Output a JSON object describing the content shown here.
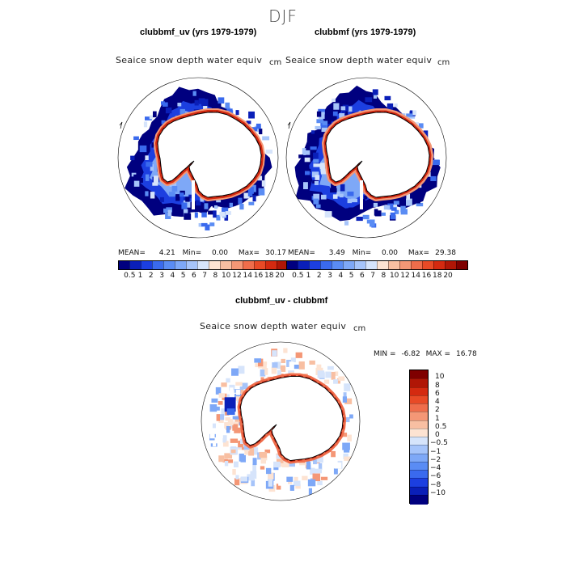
{
  "figure": {
    "season": "DJF"
  },
  "panels": [
    {
      "title": "clubbmf_uv (yrs 1979-1979)",
      "variable": "Seaice snow depth water equiv",
      "units": "cm",
      "mean_label": "MEAN=",
      "mean": "4.21",
      "min_label": "Min=",
      "min": "0.00",
      "max_label": "Max=",
      "max": "30.17"
    },
    {
      "title": "clubbmf (yrs 1979-1979)",
      "variable": "Seaice snow depth water equiv",
      "units": "cm",
      "mean_label": "MEAN=",
      "mean": "3.49",
      "min_label": "Min=",
      "min": "0.00",
      "max_label": "Max=",
      "max": "29.38"
    }
  ],
  "difference": {
    "title": "clubbmf_uv - clubbmf",
    "variable": "Seaice snow depth water equiv",
    "units": "cm",
    "min_label": "MIN =",
    "min": "-6.82",
    "max_label": "MAX =",
    "max": "16.78"
  },
  "colorbar_top": {
    "labels": [
      "0.5",
      "1",
      "2",
      "3",
      "4",
      "5",
      "6",
      "7",
      "8",
      "10",
      "12",
      "14",
      "16",
      "18",
      "20"
    ],
    "colors": [
      "#00007f",
      "#0a1fb8",
      "#1c3fe0",
      "#3a6aee",
      "#5a8cf4",
      "#7ea8f7",
      "#a6c4fa",
      "#d6e4fb",
      "#fde3d2",
      "#f8bfa2",
      "#f49776",
      "#ef6d4b",
      "#e84a26",
      "#d42a10",
      "#b01606",
      "#7f0000"
    ]
  },
  "colorbar_diff": {
    "labels": [
      "10",
      "8",
      "6",
      "4",
      "2",
      "1",
      "0.5",
      "0",
      "−0.5",
      "−1",
      "−2",
      "−4",
      "−6",
      "−8",
      "−10"
    ],
    "colors": [
      "#7f0000",
      "#b01606",
      "#d42a10",
      "#e84a26",
      "#ef6d4b",
      "#f49776",
      "#f8bfa2",
      "#fde3d2",
      "#d6e4fb",
      "#a6c4fa",
      "#7ea8f7",
      "#5a8cf4",
      "#3a6aee",
      "#1c3fe0",
      "#0a1fb8",
      "#00007f"
    ]
  },
  "chart_data": [
    {
      "type": "heatmap",
      "title": "clubbmf_uv (yrs 1979-1979)",
      "subtitle": "Seaice snow depth water equiv",
      "units": "cm",
      "projection": "south polar stereographic",
      "stats": {
        "mean": 4.21,
        "min": 0.0,
        "max": 30.17
      },
      "contour_levels": [
        0.5,
        1,
        2,
        3,
        4,
        5,
        6,
        7,
        8,
        10,
        12,
        14,
        16,
        18,
        20
      ]
    },
    {
      "type": "heatmap",
      "title": "clubbmf (yrs 1979-1979)",
      "subtitle": "Seaice snow depth water equiv",
      "units": "cm",
      "projection": "south polar stereographic",
      "stats": {
        "mean": 3.49,
        "min": 0.0,
        "max": 29.38
      },
      "contour_levels": [
        0.5,
        1,
        2,
        3,
        4,
        5,
        6,
        7,
        8,
        10,
        12,
        14,
        16,
        18,
        20
      ]
    },
    {
      "type": "heatmap",
      "title": "clubbmf_uv - clubbmf",
      "subtitle": "Seaice snow depth water equiv",
      "units": "cm",
      "projection": "south polar stereographic",
      "stats": {
        "min": -6.82,
        "max": 16.78
      },
      "contour_levels": [
        -10,
        -8,
        -6,
        -4,
        -2,
        -1,
        -0.5,
        0,
        0.5,
        1,
        2,
        4,
        6,
        8,
        10
      ]
    }
  ]
}
